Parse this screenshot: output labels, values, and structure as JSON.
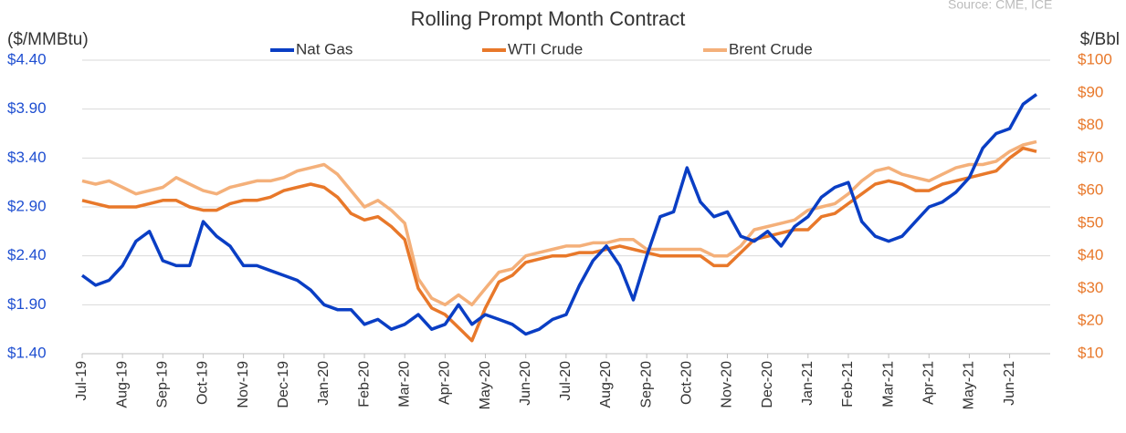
{
  "chart_data": {
    "type": "line",
    "title": "Rolling Prompt Month Contract",
    "source": "Source: CME, ICE",
    "y_label": "($/MMBtu)",
    "y2_label": "$/Bbl",
    "legend": "top",
    "grid": true,
    "categories": [
      "Jul-19",
      null,
      null,
      "Aug-19",
      null,
      null,
      "Sep-19",
      null,
      null,
      "Oct-19",
      null,
      null,
      "Nov-19",
      null,
      null,
      "Dec-19",
      null,
      null,
      "Jan-20",
      null,
      null,
      "Feb-20",
      null,
      null,
      "Mar-20",
      null,
      null,
      "Apr-20",
      null,
      null,
      "May-20",
      null,
      null,
      "Jun-20",
      null,
      null,
      "Jul-20",
      null,
      null,
      "Aug-20",
      null,
      null,
      "Sep-20",
      null,
      null,
      "Oct-20",
      null,
      null,
      "Nov-20",
      null,
      null,
      "Dec-20",
      null,
      null,
      "Jan-21",
      null,
      null,
      "Feb-21",
      null,
      null,
      "Mar-21",
      null,
      null,
      "Apr-21",
      null,
      null,
      "May-21",
      null,
      null,
      "Jun-21",
      null,
      null
    ],
    "ylim": [
      1.4,
      4.4
    ],
    "yticks": [
      {
        "value": 1.4,
        "label": "$1.40"
      },
      {
        "value": 1.9,
        "label": "$1.90"
      },
      {
        "value": 2.4,
        "label": "$2.40"
      },
      {
        "value": 2.9,
        "label": "$2.90"
      },
      {
        "value": 3.4,
        "label": "$3.40"
      },
      {
        "value": 3.9,
        "label": "$3.90"
      },
      {
        "value": 4.4,
        "label": "$4.40"
      }
    ],
    "y2lim": [
      10,
      100
    ],
    "y2ticks": [
      {
        "value": 10,
        "label": "$10"
      },
      {
        "value": 20,
        "label": "$20"
      },
      {
        "value": 30,
        "label": "$30"
      },
      {
        "value": 40,
        "label": "$40"
      },
      {
        "value": 50,
        "label": "$50"
      },
      {
        "value": 60,
        "label": "$60"
      },
      {
        "value": 70,
        "label": "$70"
      },
      {
        "value": 80,
        "label": "$80"
      },
      {
        "value": 90,
        "label": "$90"
      },
      {
        "value": 100,
        "label": "$100"
      }
    ],
    "series": [
      {
        "name": "Nat Gas",
        "color": "#0a3ec4",
        "values": [
          2.2,
          2.1,
          2.15,
          2.3,
          2.55,
          2.65,
          2.35,
          2.3,
          2.3,
          2.75,
          2.6,
          2.5,
          2.3,
          2.3,
          2.25,
          2.2,
          2.15,
          2.05,
          1.9,
          1.85,
          1.85,
          1.7,
          1.75,
          1.65,
          1.7,
          1.8,
          1.65,
          1.7,
          1.9,
          1.7,
          1.8,
          1.75,
          1.7,
          1.6,
          1.65,
          1.75,
          1.8,
          2.1,
          2.35,
          2.5,
          2.3,
          1.95,
          2.4,
          2.8,
          2.85,
          3.3,
          2.95,
          2.8,
          2.85,
          2.6,
          2.55,
          2.65,
          2.5,
          2.7,
          2.8,
          3.0,
          3.1,
          3.15,
          2.75,
          2.6,
          2.55,
          2.6,
          2.75,
          2.9,
          2.95,
          3.05,
          3.2,
          3.5,
          3.65,
          3.7,
          3.95,
          4.05
        ]
      },
      {
        "name": "WTI Crude",
        "color": "#e8782a",
        "axis": "y2",
        "values": [
          57,
          56,
          55,
          55,
          55,
          56,
          57,
          57,
          55,
          54,
          54,
          56,
          57,
          57,
          58,
          60,
          61,
          62,
          61,
          58,
          53,
          51,
          52,
          49,
          45,
          30,
          24,
          22,
          18,
          14,
          24,
          32,
          34,
          38,
          39,
          40,
          40,
          41,
          41,
          42,
          43,
          42,
          41,
          40,
          40,
          40,
          40,
          37,
          37,
          41,
          45,
          46,
          47,
          48,
          48,
          52,
          53,
          56,
          59,
          62,
          63,
          62,
          60,
          60,
          62,
          63,
          64,
          65,
          66,
          70,
          73,
          72
        ]
      },
      {
        "name": "Brent Crude",
        "color": "#f4b07a",
        "axis": "y2",
        "values": [
          63,
          62,
          63,
          61,
          59,
          60,
          61,
          64,
          62,
          60,
          59,
          61,
          62,
          63,
          63,
          64,
          66,
          67,
          68,
          65,
          60,
          55,
          57,
          54,
          50,
          33,
          27,
          25,
          28,
          25,
          30,
          35,
          36,
          40,
          41,
          42,
          43,
          43,
          44,
          44,
          45,
          45,
          42,
          42,
          42,
          42,
          42,
          40,
          40,
          43,
          48,
          49,
          50,
          51,
          54,
          55,
          56,
          59,
          63,
          66,
          67,
          65,
          64,
          63,
          65,
          67,
          68,
          68,
          69,
          72,
          74,
          75
        ]
      }
    ]
  }
}
